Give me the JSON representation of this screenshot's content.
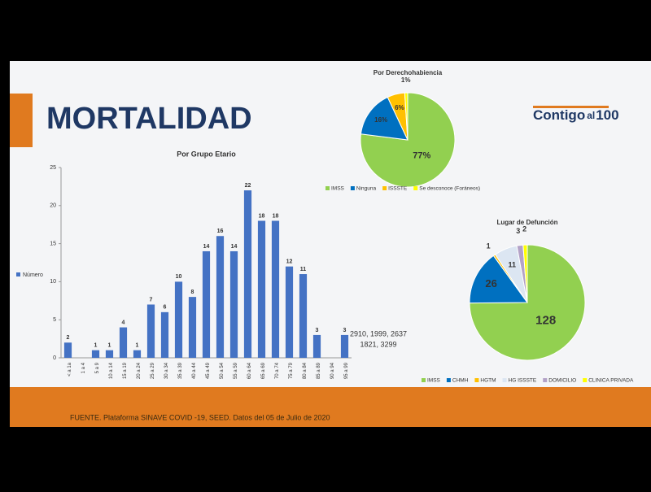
{
  "slide_title": "MORTALIDAD",
  "logo": {
    "part1": "Contigo",
    "part2": "al",
    "part3": "100"
  },
  "footer": "FUENTE. Plataforma SINAVE COVID -19, SEED. Datos del 05 de Julio de 2020",
  "annotation": {
    "line1": "2910, 1999, 2637",
    "line2": "1821, 3299"
  },
  "chart_data": [
    {
      "type": "bar",
      "title": "Por Grupo Etario",
      "categories": [
        "< a 1a",
        "1 a 4",
        "5 a 9",
        "10 a 14",
        "15 a 19",
        "20 a 24",
        "25 a 29",
        "30 a 34",
        "35 a 39",
        "40 a 44",
        "45 a 49",
        "50 a 54",
        "55 a 59",
        "60 a 64",
        "65 a 69",
        "70 a 74",
        "75 a 79",
        "80 a 84",
        "85 a 89",
        "90 a 94",
        "95 a 99"
      ],
      "series": [
        {
          "name": "Número",
          "color": "#4472c4",
          "values": [
            2,
            null,
            1,
            1,
            4,
            1,
            7,
            6,
            10,
            8,
            14,
            16,
            14,
            22,
            18,
            18,
            12,
            11,
            3,
            null,
            3
          ]
        }
      ],
      "ylim": [
        0,
        25
      ],
      "yticks": [
        0,
        5,
        10,
        15,
        20,
        25
      ],
      "legend": "left"
    },
    {
      "type": "pie",
      "title": "Por Derechohabiencia",
      "categories": [
        "IMSS",
        "Ninguna",
        "ISSSTE",
        "Se desconoce (Foráneos)"
      ],
      "values": [
        77,
        16,
        6,
        1
      ],
      "value_labels": [
        "77%",
        "16%",
        "6%",
        "1%"
      ],
      "colors": [
        "#92d050",
        "#0070c0",
        "#ffc000",
        "#ffff00"
      ],
      "legend": "bottom"
    },
    {
      "type": "pie",
      "title": "Lugar de Defunción",
      "categories": [
        "IMSS",
        "CHMH",
        "HGTM",
        "HG ISSSTE",
        "DOMICILIO",
        "CLINICA PRIVADA"
      ],
      "values": [
        128,
        26,
        1,
        11,
        3,
        2
      ],
      "colors": [
        "#92d050",
        "#0070c0",
        "#ffc000",
        "#dce6f2",
        "#b3a2c7",
        "#ffff00"
      ],
      "legend": "bottom"
    }
  ]
}
